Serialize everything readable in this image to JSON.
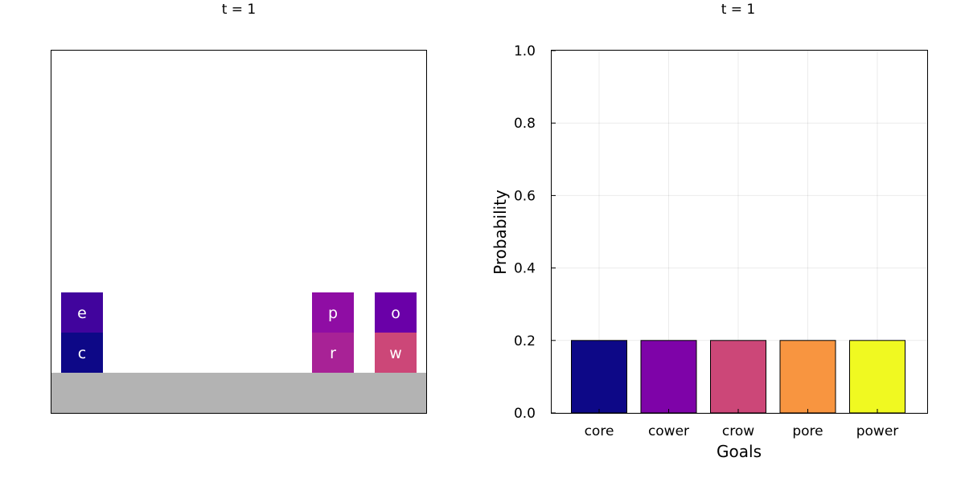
{
  "blocks_panel": {
    "title": "t = 1",
    "floor_color": "#b3b3b3",
    "stacks": [
      {
        "column": 0,
        "blocks": [
          {
            "letter": "c",
            "color": "#0d0887"
          },
          {
            "letter": "e",
            "color": "#41049d"
          }
        ]
      },
      {
        "column": 4,
        "blocks": [
          {
            "letter": "r",
            "color": "#a82296"
          },
          {
            "letter": "p",
            "color": "#8f0da4"
          }
        ]
      },
      {
        "column": 5,
        "blocks": [
          {
            "letter": "w",
            "color": "#cc4778"
          },
          {
            "letter": "o",
            "color": "#6a00a8"
          }
        ]
      }
    ]
  },
  "chart_data": {
    "type": "bar",
    "title": "t = 1",
    "xlabel": "Goals",
    "ylabel": "Probability",
    "ylim": [
      0,
      1.0
    ],
    "yticks": [
      "0.0",
      "0.2",
      "0.4",
      "0.6",
      "0.8",
      "1.0"
    ],
    "grid": true,
    "categories": [
      "core",
      "cower",
      "crow",
      "pore",
      "power"
    ],
    "values": [
      0.2,
      0.2,
      0.2,
      0.2,
      0.2
    ],
    "colors": [
      "#0d0887",
      "#7e03a8",
      "#cc4778",
      "#f89540",
      "#f0f921"
    ]
  }
}
